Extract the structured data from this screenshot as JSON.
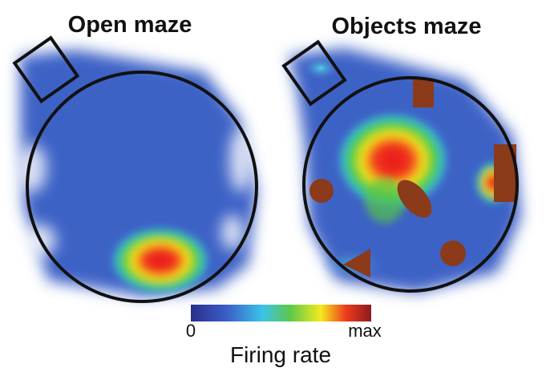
{
  "panels": [
    {
      "title": "Open maze"
    },
    {
      "title": "Objects maze"
    }
  ],
  "colorbar": {
    "min_label": "0",
    "max_label": "max",
    "label": "Firing rate"
  }
}
